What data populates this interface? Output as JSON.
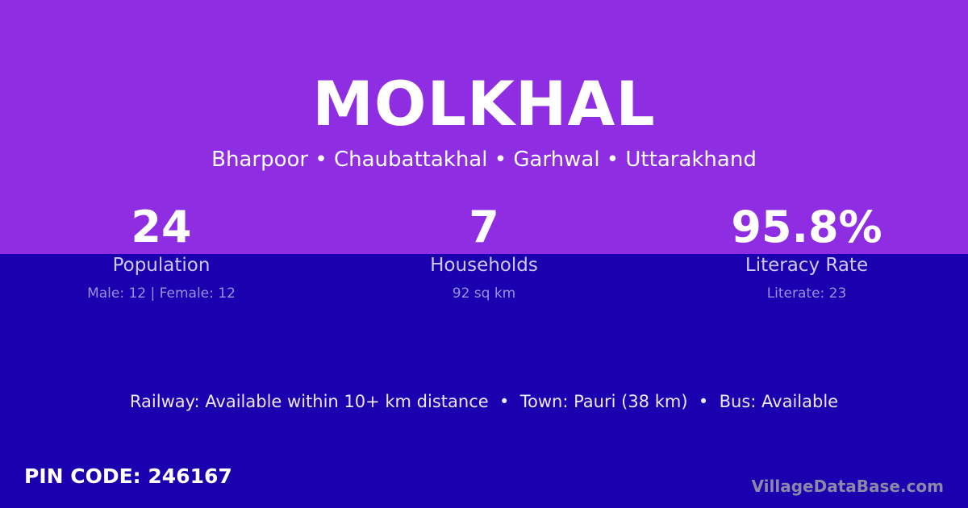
{
  "title": "MOLKHAL",
  "location": "Bharpoor • Chaubattakhal • Garhwal • Uttarakhand",
  "stats": [
    {
      "value": "24",
      "label": "Population",
      "detail": "Male: 12 | Female: 12"
    },
    {
      "value": "7",
      "label": "Households",
      "detail": "92 sq km"
    },
    {
      "value": "95.8%",
      "label": "Literacy Rate",
      "detail": "Literate: 23"
    }
  ],
  "info": "Railway: Available within 10+ km distance  •  Town: Pauri (38 km)  •  Bus: Available",
  "pin": "PIN CODE: 246167",
  "brand": "VillageDataBase.com",
  "colors": {
    "top": "#8e2de2",
    "bottom": "#1a00ae"
  }
}
